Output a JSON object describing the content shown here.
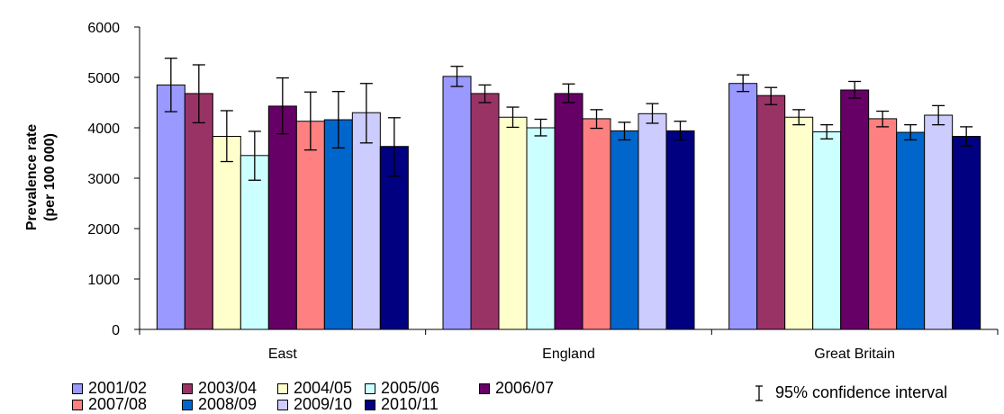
{
  "chart_data": {
    "type": "bar",
    "categories": [
      "East",
      "England",
      "Great Britain"
    ],
    "ylabel_line1": "Prevalence rate",
    "ylabel_line2": "(per 100 000)",
    "ylim": [
      0,
      6000
    ],
    "yticks": [
      0,
      1000,
      2000,
      3000,
      4000,
      5000,
      6000
    ],
    "grid": false,
    "legend_position": "bottom",
    "ci_legend_label": "95% confidence interval",
    "series": [
      {
        "name": "2001/02",
        "color": "#9999ff",
        "values": [
          4850,
          5020,
          4880
        ],
        "ci_low": [
          4320,
          4820,
          4720
        ],
        "ci_high": [
          5380,
          5220,
          5050
        ]
      },
      {
        "name": "2003/04",
        "color": "#993366",
        "values": [
          4680,
          4680,
          4640
        ],
        "ci_low": [
          4100,
          4500,
          4460
        ],
        "ci_high": [
          5250,
          4850,
          4800
        ]
      },
      {
        "name": "2004/05",
        "color": "#ffffcc",
        "values": [
          3830,
          4210,
          4210
        ],
        "ci_low": [
          3330,
          4010,
          4060
        ],
        "ci_high": [
          4340,
          4410,
          4360
        ]
      },
      {
        "name": "2005/06",
        "color": "#ccffff",
        "values": [
          3450,
          4000,
          3920
        ],
        "ci_low": [
          2960,
          3840,
          3780
        ],
        "ci_high": [
          3930,
          4170,
          4060
        ]
      },
      {
        "name": "2006/07",
        "color": "#660066",
        "values": [
          4430,
          4680,
          4750
        ],
        "ci_low": [
          3880,
          4500,
          4590
        ],
        "ci_high": [
          4990,
          4870,
          4920
        ]
      },
      {
        "name": "2007/08",
        "color": "#ff8080",
        "values": [
          4130,
          4180,
          4180
        ],
        "ci_low": [
          3560,
          3990,
          4020
        ],
        "ci_high": [
          4710,
          4360,
          4330
        ]
      },
      {
        "name": "2008/09",
        "color": "#0066cc",
        "values": [
          4160,
          3940,
          3910
        ],
        "ci_low": [
          3600,
          3760,
          3760
        ],
        "ci_high": [
          4720,
          4110,
          4060
        ]
      },
      {
        "name": "2009/10",
        "color": "#ccccff",
        "values": [
          4300,
          4280,
          4250
        ],
        "ci_low": [
          3700,
          4090,
          4060
        ],
        "ci_high": [
          4880,
          4480,
          4440
        ]
      },
      {
        "name": "2010/11",
        "color": "#000080",
        "values": [
          3630,
          3940,
          3830
        ],
        "ci_low": [
          3040,
          3760,
          3640
        ],
        "ci_high": [
          4200,
          4130,
          4020
        ]
      }
    ]
  }
}
